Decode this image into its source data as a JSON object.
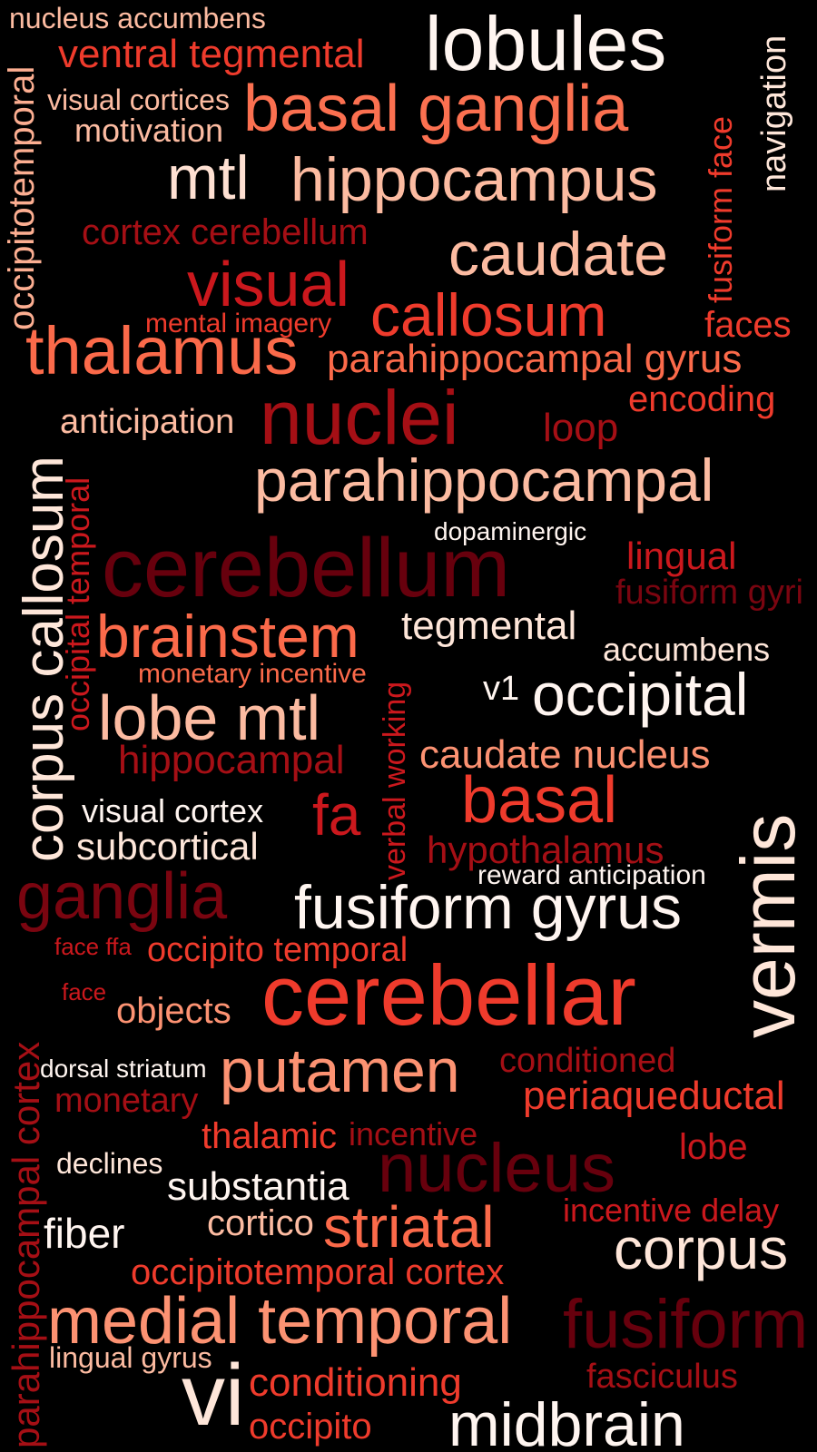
{
  "colors": {
    "background": "#000000",
    "palette": [
      "#fee6d9",
      "#fcbba1",
      "#fc9272",
      "#fb6a4a",
      "#ef3b2c",
      "#cb181d",
      "#a50f15",
      "#67000d"
    ]
  },
  "words": [
    {
      "id": "nucleus-accumbens",
      "text": "nucleus accumbens",
      "color": "#fcbba1"
    },
    {
      "id": "lobules",
      "text": "lobules",
      "color": "#fff5f0"
    },
    {
      "id": "ventral-tegmental",
      "text": "ventral tegmental",
      "color": "#ef3b2c"
    },
    {
      "id": "navigation",
      "text": "navigation",
      "color": "#fee6d9"
    },
    {
      "id": "visual-cortices",
      "text": "visual cortices",
      "color": "#fcbba1"
    },
    {
      "id": "basal-ganglia",
      "text": "basal ganglia",
      "color": "#fb7050"
    },
    {
      "id": "motivation",
      "text": "motivation",
      "color": "#fcbba1"
    },
    {
      "id": "occipitotemporal",
      "text": "occipitotemporal",
      "color": "#fcae91"
    },
    {
      "id": "fusiform-face",
      "text": "fusiform face",
      "color": "#ef3b2c"
    },
    {
      "id": "mtl",
      "text": "mtl",
      "color": "#fee0d2"
    },
    {
      "id": "hippocampus",
      "text": "hippocampus",
      "color": "#fcbba1"
    },
    {
      "id": "cortex-cerebellum",
      "text": "cortex cerebellum",
      "color": "#a50f15"
    },
    {
      "id": "caudate",
      "text": "caudate",
      "color": "#fcbba1"
    },
    {
      "id": "visual",
      "text": "visual",
      "color": "#cb181d"
    },
    {
      "id": "callosum",
      "text": "callosum",
      "color": "#ef3b2c"
    },
    {
      "id": "mental-imagery",
      "text": "mental imagery",
      "color": "#ef3b2c"
    },
    {
      "id": "faces",
      "text": "faces",
      "color": "#ef3b2c"
    },
    {
      "id": "thalamus",
      "text": "thalamus",
      "color": "#fb6a4a"
    },
    {
      "id": "parahippocampal-gyrus",
      "text": "parahippocampal gyrus",
      "color": "#fb6a4a"
    },
    {
      "id": "encoding",
      "text": "encoding",
      "color": "#ef3b2c"
    },
    {
      "id": "corpus-callosum",
      "text": "corpus callosum",
      "color": "#fee6d9"
    },
    {
      "id": "anticipation",
      "text": "anticipation",
      "color": "#fcbba1"
    },
    {
      "id": "nuclei",
      "text": "nuclei",
      "color": "#a50f15"
    },
    {
      "id": "loop",
      "text": "loop",
      "color": "#a50f15"
    },
    {
      "id": "occipital-temporal",
      "text": "occipital temporal",
      "color": "#cb181d"
    },
    {
      "id": "parahippocampal",
      "text": "parahippocampal",
      "color": "#fcbba1"
    },
    {
      "id": "dopaminergic",
      "text": "dopaminergic",
      "color": "#fff5f0"
    },
    {
      "id": "cerebellum",
      "text": "cerebellum",
      "color": "#67000d"
    },
    {
      "id": "lingual",
      "text": "lingual",
      "color": "#cb181d"
    },
    {
      "id": "fusiform-gyri",
      "text": "fusiform gyri",
      "color": "#7a0510"
    },
    {
      "id": "brainstem",
      "text": "brainstem",
      "color": "#fb6a4a"
    },
    {
      "id": "tegmental",
      "text": "tegmental",
      "color": "#fee6d9"
    },
    {
      "id": "accumbens",
      "text": "accumbens",
      "color": "#fee6d9"
    },
    {
      "id": "monetary-incentive",
      "text": "monetary incentive",
      "color": "#fb6a4a"
    },
    {
      "id": "verbal-working",
      "text": "verbal working",
      "color": "#cb181d"
    },
    {
      "id": "v1",
      "text": "v1",
      "color": "#fff5f0"
    },
    {
      "id": "occipital",
      "text": "occipital",
      "color": "#fff5f0"
    },
    {
      "id": "lobe-mtl",
      "text": "lobe mtl",
      "color": "#fcbba1"
    },
    {
      "id": "hippocampal",
      "text": "hippocampal",
      "color": "#a50f15"
    },
    {
      "id": "caudate-nucleus",
      "text": "caudate nucleus",
      "color": "#fc9272"
    },
    {
      "id": "basal",
      "text": "basal",
      "color": "#ef3b2c"
    },
    {
      "id": "vermis",
      "text": "vermis",
      "color": "#fee6d9"
    },
    {
      "id": "visual-cortex",
      "text": "visual cortex",
      "color": "#fff5f0"
    },
    {
      "id": "fa",
      "text": "fa",
      "color": "#cb181d"
    },
    {
      "id": "subcortical",
      "text": "subcortical",
      "color": "#fee6d9"
    },
    {
      "id": "hypothalamus",
      "text": "hypothalamus",
      "color": "#a50f15"
    },
    {
      "id": "reward-anticipation",
      "text": "reward anticipation",
      "color": "#fff5f0"
    },
    {
      "id": "ganglia",
      "text": "ganglia",
      "color": "#7a0510"
    },
    {
      "id": "fusiform-gyrus",
      "text": "fusiform gyrus",
      "color": "#fff5f0"
    },
    {
      "id": "parahippocampal-cortex",
      "text": "parahippocampal cortex",
      "color": "#a50f15"
    },
    {
      "id": "face-ffa",
      "text": "face ffa",
      "color": "#cb181d"
    },
    {
      "id": "occipito-temporal",
      "text": "occipito temporal",
      "color": "#ef3b2c"
    },
    {
      "id": "face",
      "text": "face",
      "color": "#cb181d"
    },
    {
      "id": "objects",
      "text": "objects",
      "color": "#fc9272"
    },
    {
      "id": "cerebellar",
      "text": "cerebellar",
      "color": "#ef3b2c"
    },
    {
      "id": "dorsal-striatum",
      "text": "dorsal striatum",
      "color": "#fff5f0"
    },
    {
      "id": "putamen",
      "text": "putamen",
      "color": "#fc9272"
    },
    {
      "id": "conditioned",
      "text": "conditioned",
      "color": "#a50f15"
    },
    {
      "id": "monetary",
      "text": "monetary",
      "color": "#a50f15"
    },
    {
      "id": "periaqueductal",
      "text": "periaqueductal",
      "color": "#ef3b2c"
    },
    {
      "id": "thalamic",
      "text": "thalamic",
      "color": "#ef3b2c"
    },
    {
      "id": "incentive",
      "text": "incentive",
      "color": "#a50f15"
    },
    {
      "id": "lobe",
      "text": "lobe",
      "color": "#cb181d"
    },
    {
      "id": "declines",
      "text": "declines",
      "color": "#fee6d9"
    },
    {
      "id": "nucleus",
      "text": "nucleus",
      "color": "#67000d"
    },
    {
      "id": "substantia",
      "text": "substantia",
      "color": "#fff5f0"
    },
    {
      "id": "fiber",
      "text": "fiber",
      "color": "#fff5f0"
    },
    {
      "id": "cortico",
      "text": "cortico",
      "color": "#fcbba1"
    },
    {
      "id": "striatal",
      "text": "striatal",
      "color": "#fb6a4a"
    },
    {
      "id": "incentive-delay",
      "text": "incentive delay",
      "color": "#cb181d"
    },
    {
      "id": "corpus",
      "text": "corpus",
      "color": "#fee6d9"
    },
    {
      "id": "occipitotemporal-cortex",
      "text": "occipitotemporal cortex",
      "color": "#ef3b2c"
    },
    {
      "id": "medial-temporal",
      "text": "medial temporal",
      "color": "#fc9272"
    },
    {
      "id": "fusiform",
      "text": "fusiform",
      "color": "#67000d"
    },
    {
      "id": "lingual-gyrus",
      "text": "lingual gyrus",
      "color": "#fcbba1"
    },
    {
      "id": "vi",
      "text": "vi",
      "color": "#fee6d9"
    },
    {
      "id": "conditioning",
      "text": "conditioning",
      "color": "#ef3b2c"
    },
    {
      "id": "fasciculus",
      "text": "fasciculus",
      "color": "#a50f15"
    },
    {
      "id": "occipito",
      "text": "occipito",
      "color": "#ef3b2c"
    },
    {
      "id": "midbrain",
      "text": "midbrain",
      "color": "#fff5f0"
    }
  ]
}
